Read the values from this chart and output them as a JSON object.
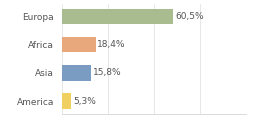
{
  "categories": [
    "Europa",
    "Africa",
    "Asia",
    "America"
  ],
  "values": [
    60.5,
    18.4,
    15.8,
    5.3
  ],
  "labels": [
    "60,5%",
    "18,4%",
    "15,8%",
    "5,3%"
  ],
  "colors": [
    "#a9bc90",
    "#e8a87c",
    "#7b9cc2",
    "#f0d060"
  ],
  "xlim": [
    0,
    100
  ],
  "background_color": "#ffffff",
  "label_fontsize": 6.5,
  "tick_fontsize": 6.5,
  "bar_height": 0.55
}
